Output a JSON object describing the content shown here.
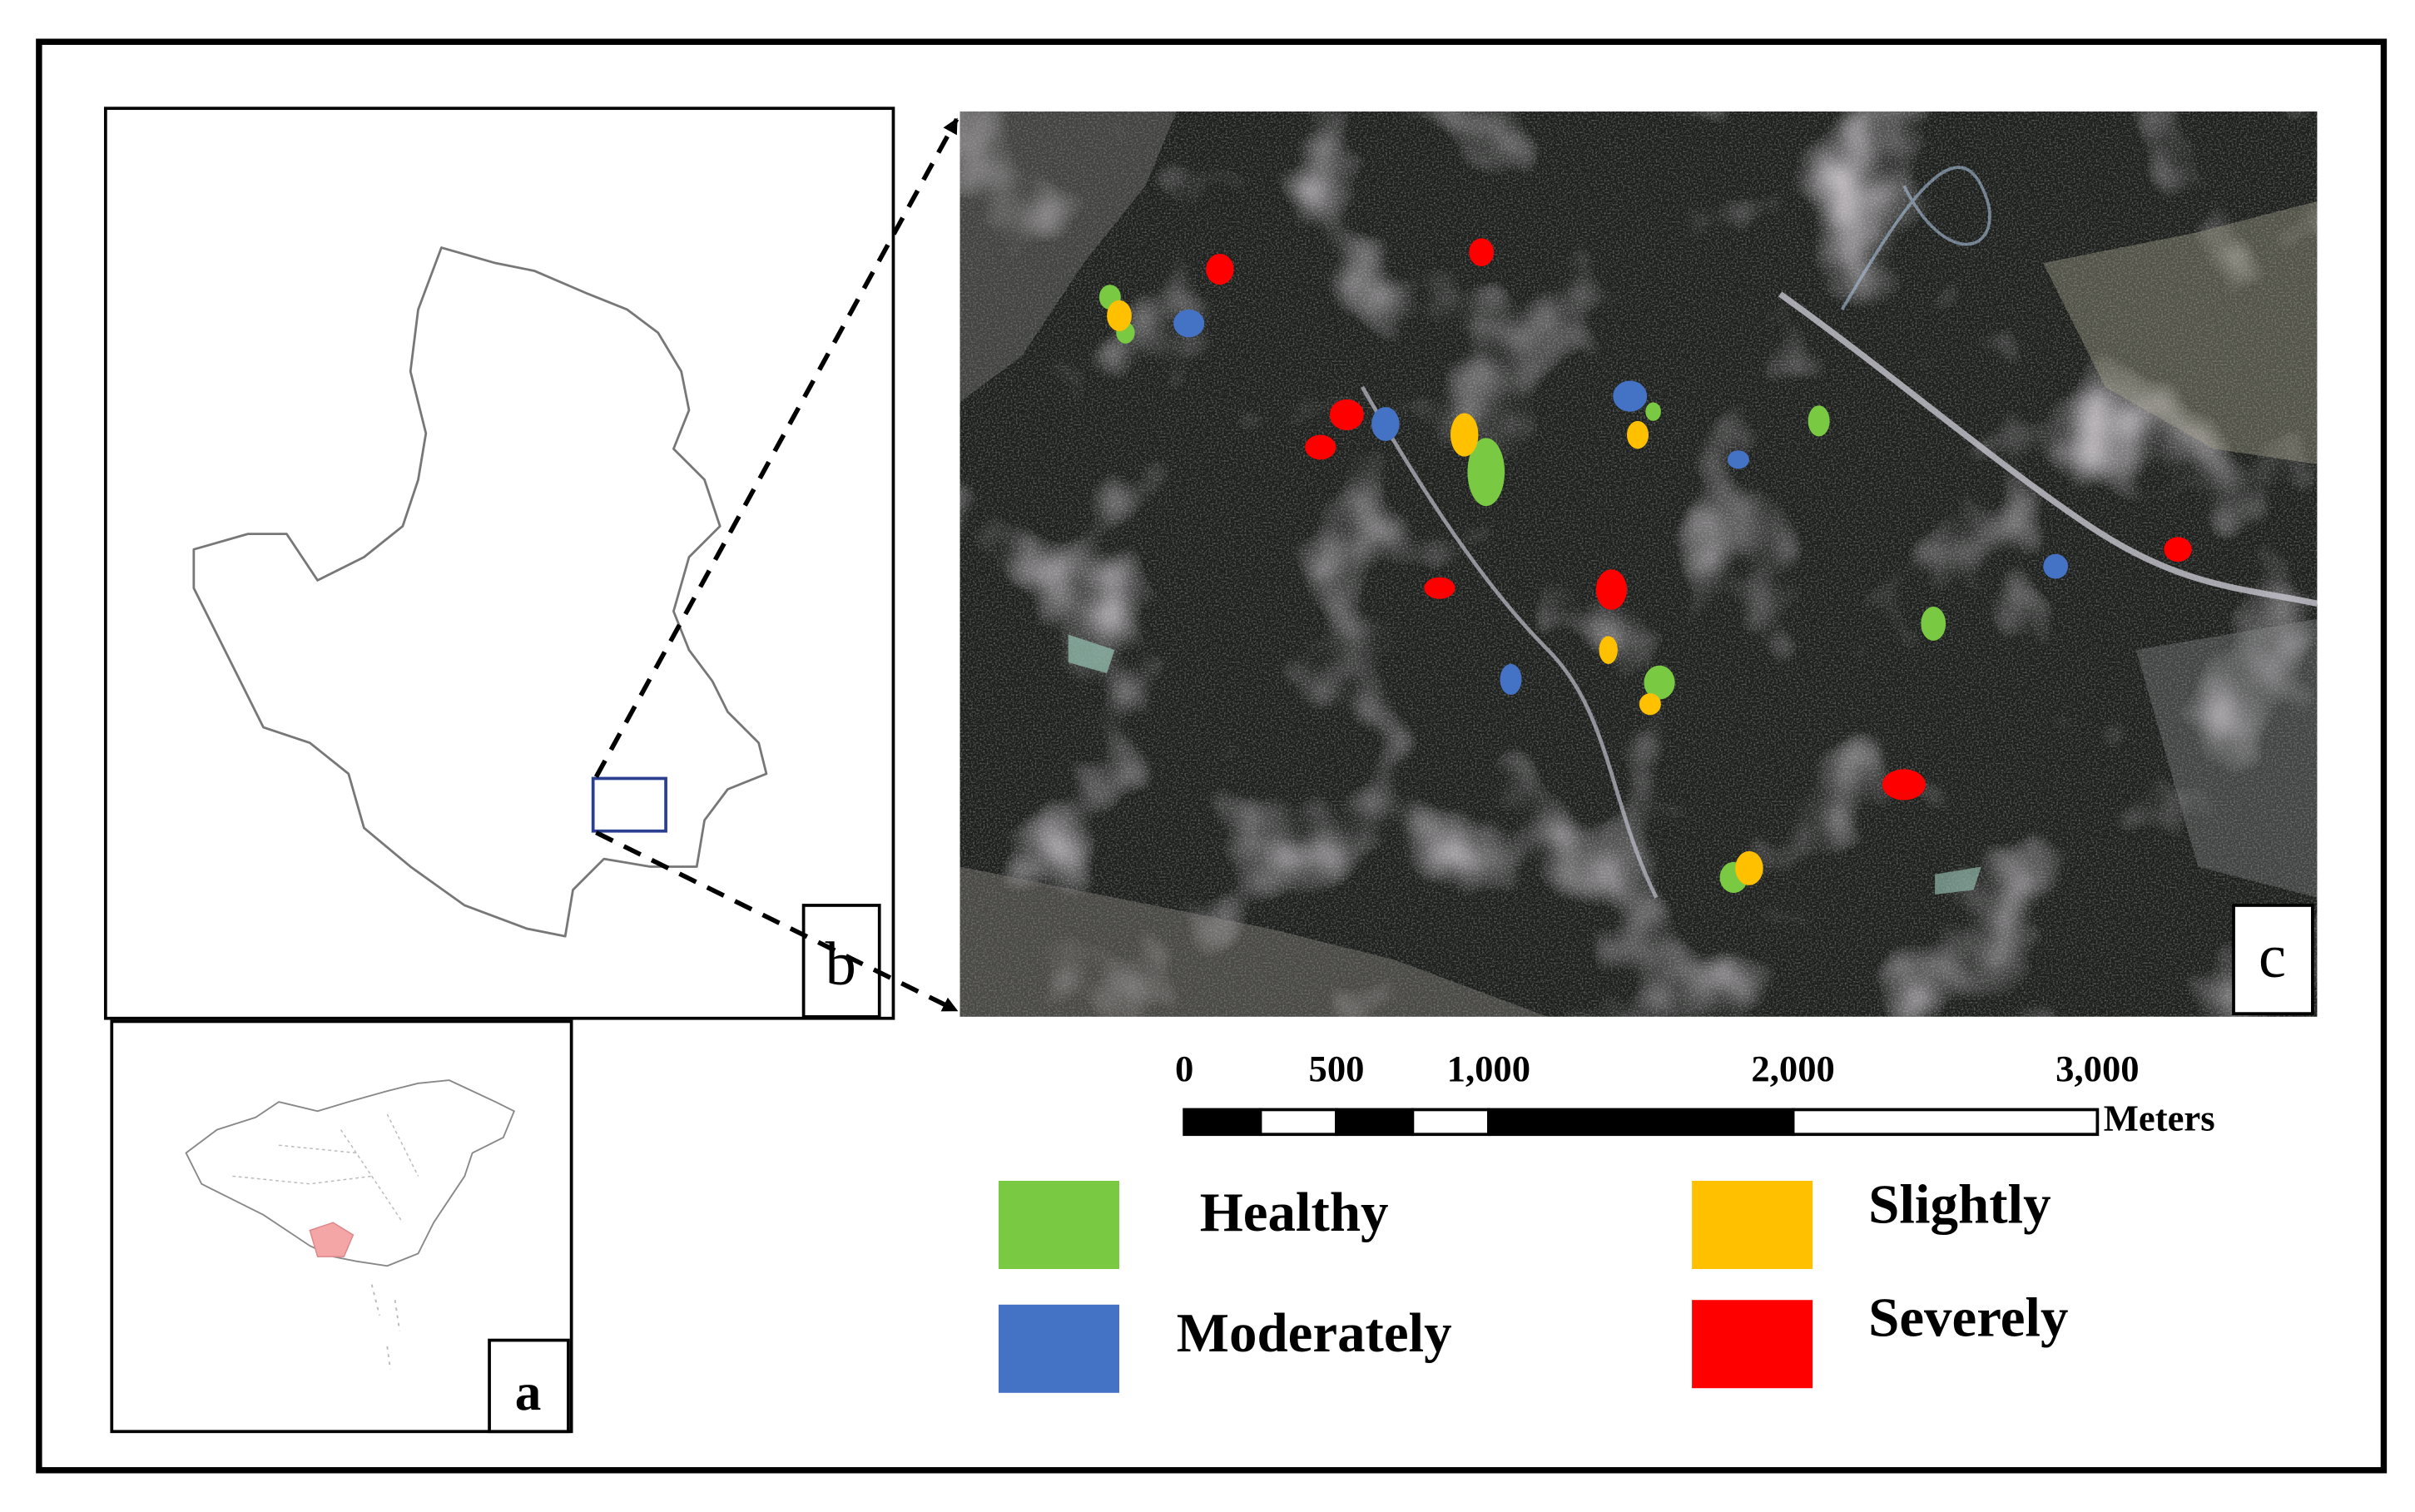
{
  "panels": {
    "a": "a",
    "b": "b",
    "c": "c"
  },
  "scale_bar": {
    "ticks": [
      0,
      500,
      {
        "value": 1000,
        "label": "1,000"
      },
      {
        "value": 2000,
        "label": "2,000"
      },
      {
        "value": 3000,
        "label": "3,000"
      }
    ],
    "unit": "Meters"
  },
  "legend": [
    {
      "name": "Healthy",
      "color": "#7ac943"
    },
    {
      "name": "Moderately",
      "color": "#4472c4"
    },
    {
      "name": "Slightly",
      "color": "#ffc000"
    },
    {
      "name": "Severely",
      "color": "#ff0000"
    }
  ]
}
